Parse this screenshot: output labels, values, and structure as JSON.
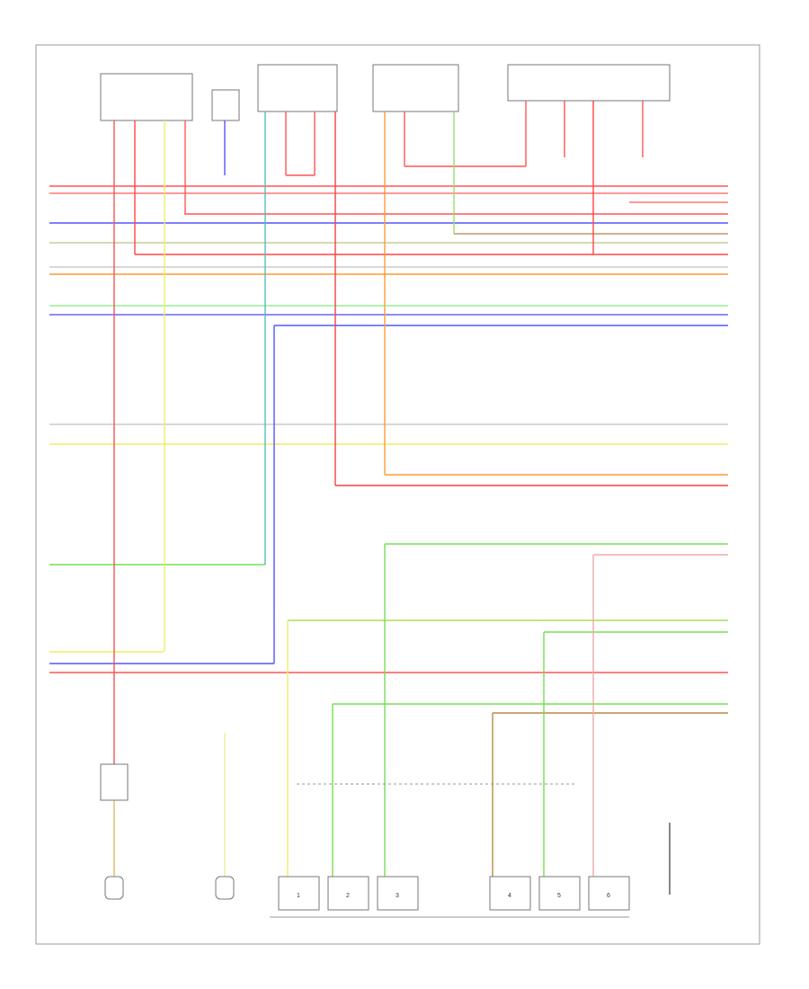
{
  "diagram": {
    "injectors": [
      {
        "label": "1"
      },
      {
        "label": "2"
      },
      {
        "label": "3"
      },
      {
        "label": "4"
      },
      {
        "label": "5"
      },
      {
        "label": "6"
      }
    ]
  }
}
